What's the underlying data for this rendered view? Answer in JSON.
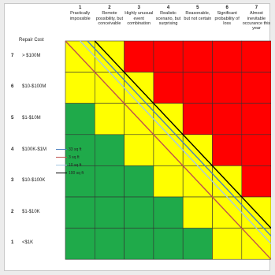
{
  "corner_label": "Repair Cost",
  "columns": [
    {
      "num": "1",
      "label": "Practically impossible"
    },
    {
      "num": "2",
      "label": "Remote possibility, but conceivable"
    },
    {
      "num": "3",
      "label": "Highly unusual event combination"
    },
    {
      "num": "4",
      "label": "Realistic scenario, but surprising"
    },
    {
      "num": "5",
      "label": "Reasonable, but not certain"
    },
    {
      "num": "6",
      "label": "Significant probability of loss"
    },
    {
      "num": "7",
      "label": "Almost inevitable occurance this year"
    }
  ],
  "rows": [
    {
      "num": "7",
      "label": "> $100M"
    },
    {
      "num": "6",
      "label": "$10-$100M"
    },
    {
      "num": "5",
      "label": "$1-$10M"
    },
    {
      "num": "4",
      "label": "$100K-$1M"
    },
    {
      "num": "3",
      "label": "$10-$100K"
    },
    {
      "num": "2",
      "label": "$1-$10K"
    },
    {
      "num": "1",
      "label": "<$1K"
    }
  ],
  "risk_grid": [
    [
      "Y",
      "Y",
      "R",
      "R",
      "R",
      "R",
      "R"
    ],
    [
      "Y",
      "Y",
      "Y",
      "R",
      "R",
      "R",
      "R"
    ],
    [
      "G",
      "Y",
      "Y",
      "Y",
      "R",
      "R",
      "R"
    ],
    [
      "G",
      "G",
      "Y",
      "Y",
      "Y",
      "R",
      "R"
    ],
    [
      "G",
      "G",
      "G",
      "Y",
      "Y",
      "Y",
      "R"
    ],
    [
      "G",
      "G",
      "G",
      "G",
      "Y",
      "Y",
      "Y"
    ],
    [
      "G",
      "G",
      "G",
      "G",
      "G",
      "Y",
      "Y"
    ]
  ],
  "colors": {
    "G": "#1faa4a",
    "Y": "#ffff00",
    "R": "#ff0000"
  },
  "legend": [
    {
      "label": "33 sq ft",
      "color": "#4a7fc0"
    },
    {
      "label": "3 sq ft",
      "color": "#c0504d"
    },
    {
      "label": "10 sq ft",
      "color": "#a5c8e4"
    },
    {
      "label": "100 sq ft",
      "color": "#000000"
    }
  ]
}
